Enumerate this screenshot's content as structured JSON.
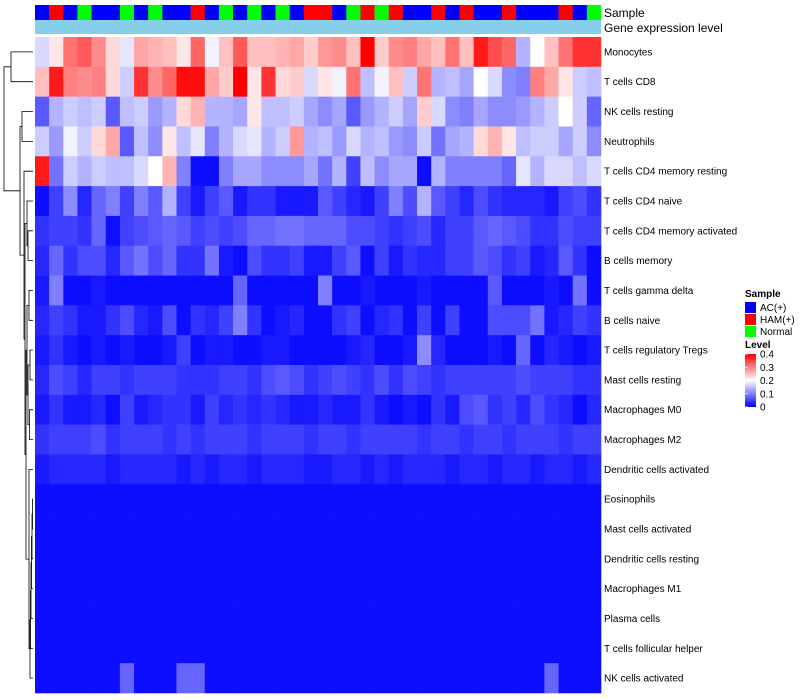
{
  "chart_data": {
    "type": "heatmap",
    "title": "",
    "row_labels": [
      "Monocytes",
      "T cells CD8",
      "NK cells resting",
      "Neutrophils",
      "T cells CD4 memory resting",
      "T cells CD4 naive",
      "T cells CD4 memory activated",
      "B cells memory",
      "T cells gamma delta",
      "B cells naive",
      "T cells regulatory  Tregs",
      "Mast cells resting",
      "Macrophages M0",
      "Macrophages M2",
      "Dendritic cells activated",
      "Eosinophils",
      "Mast cells activated",
      "Dendritic cells resting",
      "Macrophages M1",
      "Plasma cells",
      "T cells follicular helper",
      "NK cells activated"
    ],
    "annotations": {
      "sample_label": "Sample",
      "gene_label": "Gene expression level",
      "sample": [
        "A",
        "H",
        "A",
        "N",
        "A",
        "A",
        "N",
        "A",
        "N",
        "A",
        "A",
        "H",
        "A",
        "N",
        "A",
        "N",
        "A",
        "N",
        "A",
        "H",
        "H",
        "A",
        "N",
        "H",
        "N",
        "H",
        "A",
        "A",
        "H",
        "A",
        "H",
        "A",
        "A",
        "H",
        "A",
        "A",
        "A",
        "H",
        "A",
        "N"
      ],
      "gene_expression_color": "#87ceeb"
    },
    "legend": {
      "sample_title": "Sample",
      "sample_entries": [
        {
          "code": "A",
          "label": "AC(+)",
          "color": "#0000ff"
        },
        {
          "code": "H",
          "label": "HAM(+)",
          "color": "#ff0000"
        },
        {
          "code": "N",
          "label": "Normal",
          "color": "#00ff00"
        }
      ],
      "level_title": "Level",
      "level_ticks": [
        "0.4",
        "0.3",
        "0.2",
        "0.1",
        "0"
      ],
      "level_range": [
        0,
        0.4
      ],
      "colors": {
        "low": "#0000ff",
        "mid": "#ffffff",
        "high": "#ff0000"
      },
      "placement": "right"
    },
    "values": [
      [
        0.17,
        0.22,
        0.31,
        0.33,
        0.29,
        0.23,
        0.18,
        0.27,
        0.26,
        0.25,
        0.22,
        0.32,
        0.19,
        0.25,
        0.33,
        0.25,
        0.25,
        0.26,
        0.27,
        0.24,
        0.28,
        0.29,
        0.25,
        0.4,
        0.24,
        0.29,
        0.3,
        0.27,
        0.25,
        0.31,
        0.25,
        0.38,
        0.34,
        0.32,
        0.14,
        0.2,
        0.25,
        0.31,
        0.36,
        0.36
      ],
      [
        0.25,
        0.38,
        0.3,
        0.29,
        0.3,
        0.23,
        0.16,
        0.36,
        0.29,
        0.32,
        0.39,
        0.39,
        0.27,
        0.24,
        0.4,
        0.22,
        0.36,
        0.23,
        0.24,
        0.17,
        0.22,
        0.19,
        0.31,
        0.15,
        0.19,
        0.25,
        0.16,
        0.31,
        0.14,
        0.15,
        0.13,
        0.2,
        0.17,
        0.11,
        0.1,
        0.3,
        0.27,
        0.22,
        0.16,
        0.15
      ],
      [
        0.07,
        0.14,
        0.16,
        0.15,
        0.16,
        0.07,
        0.15,
        0.16,
        0.12,
        0.14,
        0.23,
        0.26,
        0.14,
        0.14,
        0.13,
        0.22,
        0.15,
        0.15,
        0.16,
        0.13,
        0.11,
        0.13,
        0.07,
        0.12,
        0.14,
        0.16,
        0.13,
        0.24,
        0.17,
        0.11,
        0.1,
        0.13,
        0.11,
        0.11,
        0.12,
        0.14,
        0.16,
        0.2,
        0.16,
        0.08
      ],
      [
        0.16,
        0.12,
        0.19,
        0.16,
        0.23,
        0.27,
        0.07,
        0.15,
        0.11,
        0.22,
        0.15,
        0.18,
        0.1,
        0.14,
        0.17,
        0.18,
        0.14,
        0.16,
        0.28,
        0.14,
        0.15,
        0.12,
        0.17,
        0.14,
        0.15,
        0.12,
        0.11,
        0.16,
        0.09,
        0.13,
        0.14,
        0.23,
        0.26,
        0.22,
        0.15,
        0.16,
        0.16,
        0.13,
        0.16,
        0.11
      ],
      [
        0.38,
        0.09,
        0.16,
        0.14,
        0.16,
        0.15,
        0.15,
        0.17,
        0.2,
        0.26,
        0.1,
        0.01,
        0.01,
        0.1,
        0.13,
        0.13,
        0.11,
        0.11,
        0.11,
        0.13,
        0.09,
        0.14,
        0.05,
        0.15,
        0.11,
        0.13,
        0.13,
        0.01,
        0.14,
        0.1,
        0.1,
        0.1,
        0.1,
        0.08,
        0.18,
        0.14,
        0.17,
        0.17,
        0.15,
        0.17
      ],
      [
        0.01,
        0.05,
        0.11,
        0.03,
        0.08,
        0.1,
        0.05,
        0.1,
        0.07,
        0.14,
        0.05,
        0.02,
        0.05,
        0.07,
        0.02,
        0.04,
        0.04,
        0.02,
        0.02,
        0.02,
        0.07,
        0.05,
        0.03,
        0.02,
        0.05,
        0.1,
        0.06,
        0.14,
        0.07,
        0.05,
        0.03,
        0.06,
        0.04,
        0.03,
        0.03,
        0.03,
        0.02,
        0.05,
        0.06,
        0.04
      ],
      [
        0.04,
        0.05,
        0.05,
        0.04,
        0.08,
        0.01,
        0.05,
        0.06,
        0.07,
        0.08,
        0.07,
        0.05,
        0.06,
        0.05,
        0.06,
        0.08,
        0.08,
        0.09,
        0.09,
        0.08,
        0.08,
        0.08,
        0.06,
        0.06,
        0.05,
        0.04,
        0.05,
        0.06,
        0.03,
        0.05,
        0.05,
        0.07,
        0.08,
        0.07,
        0.06,
        0.04,
        0.04,
        0.06,
        0.05,
        0.05
      ],
      [
        0.03,
        0.08,
        0.04,
        0.06,
        0.06,
        0.03,
        0.07,
        0.09,
        0.06,
        0.08,
        0.04,
        0.04,
        0.09,
        0.02,
        0.01,
        0.06,
        0.04,
        0.04,
        0.05,
        0.02,
        0.02,
        0.05,
        0.07,
        0.01,
        0.05,
        0.02,
        0.04,
        0.03,
        0.03,
        0.05,
        0.05,
        0.07,
        0.06,
        0.04,
        0.05,
        0.02,
        0.03,
        0.07,
        0.04,
        0.01
      ],
      [
        0.02,
        0.1,
        0.01,
        0.01,
        0.02,
        0.01,
        0.01,
        0.01,
        0.01,
        0.01,
        0.01,
        0.01,
        0.01,
        0.01,
        0.08,
        0.01,
        0.01,
        0.01,
        0.01,
        0.01,
        0.1,
        0.01,
        0.01,
        0.02,
        0.01,
        0.01,
        0.01,
        0.02,
        0.01,
        0.01,
        0.01,
        0.01,
        0.07,
        0.01,
        0.01,
        0.01,
        0.02,
        0.01,
        0.09,
        0.01
      ],
      [
        0.03,
        0.05,
        0.04,
        0.02,
        0.02,
        0.04,
        0.06,
        0.03,
        0.02,
        0.06,
        0.01,
        0.04,
        0.03,
        0.05,
        0.1,
        0.04,
        0.01,
        0.02,
        0.03,
        0.01,
        0.01,
        0.04,
        0.05,
        0.01,
        0.03,
        0.04,
        0.01,
        0.05,
        0.01,
        0.05,
        0.01,
        0.01,
        0.06,
        0.06,
        0.06,
        0.09,
        0.02,
        0.03,
        0.05,
        0.04
      ],
      [
        0.02,
        0.04,
        0.02,
        0.01,
        0.02,
        0.01,
        0.02,
        0.01,
        0.01,
        0.02,
        0.05,
        0.01,
        0.02,
        0.02,
        0.01,
        0.01,
        0.02,
        0.02,
        0.01,
        0.01,
        0.01,
        0.01,
        0.02,
        0.03,
        0.01,
        0.01,
        0.02,
        0.11,
        0.03,
        0.01,
        0.01,
        0.01,
        0.02,
        0.01,
        0.08,
        0.01,
        0.03,
        0.02,
        0.01,
        0.02
      ],
      [
        0.03,
        0.06,
        0.05,
        0.03,
        0.05,
        0.05,
        0.04,
        0.05,
        0.05,
        0.05,
        0.04,
        0.04,
        0.04,
        0.05,
        0.05,
        0.04,
        0.06,
        0.07,
        0.06,
        0.04,
        0.05,
        0.06,
        0.05,
        0.04,
        0.06,
        0.04,
        0.06,
        0.05,
        0.04,
        0.05,
        0.05,
        0.05,
        0.05,
        0.05,
        0.06,
        0.05,
        0.05,
        0.05,
        0.04,
        0.04
      ],
      [
        0.02,
        0.04,
        0.02,
        0.02,
        0.03,
        0.01,
        0.05,
        0.02,
        0.03,
        0.04,
        0.04,
        0.02,
        0.05,
        0.03,
        0.04,
        0.03,
        0.04,
        0.03,
        0.02,
        0.02,
        0.03,
        0.02,
        0.02,
        0.04,
        0.02,
        0.01,
        0.02,
        0.01,
        0.04,
        0.02,
        0.06,
        0.07,
        0.04,
        0.05,
        0.03,
        0.06,
        0.04,
        0.03,
        0.01,
        0.03
      ],
      [
        0.04,
        0.05,
        0.05,
        0.05,
        0.06,
        0.04,
        0.05,
        0.05,
        0.05,
        0.04,
        0.05,
        0.04,
        0.05,
        0.05,
        0.05,
        0.04,
        0.05,
        0.05,
        0.05,
        0.04,
        0.05,
        0.05,
        0.04,
        0.05,
        0.05,
        0.05,
        0.05,
        0.04,
        0.05,
        0.05,
        0.04,
        0.05,
        0.05,
        0.04,
        0.05,
        0.05,
        0.05,
        0.04,
        0.05,
        0.05
      ],
      [
        0.02,
        0.03,
        0.03,
        0.03,
        0.03,
        0.02,
        0.03,
        0.03,
        0.03,
        0.03,
        0.02,
        0.03,
        0.02,
        0.03,
        0.03,
        0.02,
        0.03,
        0.03,
        0.03,
        0.02,
        0.02,
        0.03,
        0.03,
        0.02,
        0.03,
        0.02,
        0.03,
        0.03,
        0.03,
        0.02,
        0.03,
        0.03,
        0.02,
        0.03,
        0.03,
        0.02,
        0.03,
        0.03,
        0.02,
        0.03
      ],
      [
        0.01,
        0.01,
        0.01,
        0.01,
        0.01,
        0.01,
        0.01,
        0.01,
        0.01,
        0.01,
        0.01,
        0.01,
        0.01,
        0.01,
        0.01,
        0.01,
        0.01,
        0.01,
        0.01,
        0.01,
        0.01,
        0.01,
        0.01,
        0.01,
        0.01,
        0.01,
        0.01,
        0.01,
        0.01,
        0.01,
        0.01,
        0.01,
        0.01,
        0.01,
        0.01,
        0.01,
        0.01,
        0.01,
        0.01,
        0.01
      ],
      [
        0.01,
        0.01,
        0.01,
        0.01,
        0.01,
        0.01,
        0.01,
        0.01,
        0.01,
        0.01,
        0.01,
        0.01,
        0.01,
        0.01,
        0.01,
        0.01,
        0.01,
        0.01,
        0.01,
        0.01,
        0.01,
        0.01,
        0.01,
        0.01,
        0.01,
        0.01,
        0.01,
        0.01,
        0.01,
        0.01,
        0.01,
        0.01,
        0.01,
        0.01,
        0.01,
        0.01,
        0.01,
        0.01,
        0.01,
        0.01
      ],
      [
        0.01,
        0.01,
        0.01,
        0.01,
        0.01,
        0.01,
        0.01,
        0.01,
        0.01,
        0.01,
        0.01,
        0.01,
        0.01,
        0.01,
        0.01,
        0.01,
        0.01,
        0.01,
        0.01,
        0.01,
        0.01,
        0.01,
        0.01,
        0.01,
        0.01,
        0.01,
        0.01,
        0.01,
        0.01,
        0.01,
        0.01,
        0.01,
        0.01,
        0.01,
        0.01,
        0.01,
        0.01,
        0.01,
        0.01,
        0.01
      ],
      [
        0.01,
        0.01,
        0.01,
        0.01,
        0.01,
        0.01,
        0.01,
        0.01,
        0.01,
        0.01,
        0.01,
        0.01,
        0.01,
        0.01,
        0.01,
        0.01,
        0.01,
        0.01,
        0.01,
        0.01,
        0.01,
        0.01,
        0.01,
        0.01,
        0.01,
        0.01,
        0.01,
        0.01,
        0.01,
        0.01,
        0.01,
        0.01,
        0.01,
        0.01,
        0.01,
        0.01,
        0.01,
        0.01,
        0.01,
        0.01
      ],
      [
        0.01,
        0.01,
        0.01,
        0.01,
        0.01,
        0.01,
        0.01,
        0.01,
        0.01,
        0.01,
        0.01,
        0.01,
        0.01,
        0.01,
        0.01,
        0.01,
        0.01,
        0.01,
        0.01,
        0.01,
        0.01,
        0.01,
        0.01,
        0.01,
        0.01,
        0.01,
        0.01,
        0.01,
        0.01,
        0.01,
        0.01,
        0.01,
        0.01,
        0.01,
        0.01,
        0.01,
        0.01,
        0.01,
        0.01,
        0.01
      ],
      [
        0.01,
        0.01,
        0.01,
        0.01,
        0.01,
        0.01,
        0.01,
        0.01,
        0.01,
        0.01,
        0.01,
        0.01,
        0.01,
        0.01,
        0.01,
        0.01,
        0.01,
        0.01,
        0.01,
        0.01,
        0.01,
        0.01,
        0.01,
        0.01,
        0.01,
        0.01,
        0.01,
        0.01,
        0.01,
        0.01,
        0.01,
        0.01,
        0.01,
        0.01,
        0.01,
        0.01,
        0.01,
        0.01,
        0.01,
        0.01
      ],
      [
        0.01,
        0.01,
        0.01,
        0.01,
        0.01,
        0.01,
        0.08,
        0.01,
        0.01,
        0.01,
        0.08,
        0.08,
        0.01,
        0.01,
        0.01,
        0.01,
        0.01,
        0.01,
        0.01,
        0.01,
        0.01,
        0.01,
        0.01,
        0.01,
        0.01,
        0.01,
        0.01,
        0.01,
        0.01,
        0.01,
        0.01,
        0.01,
        0.01,
        0.01,
        0.01,
        0.01,
        0.08,
        0.01,
        0.01,
        0.01
      ]
    ]
  }
}
